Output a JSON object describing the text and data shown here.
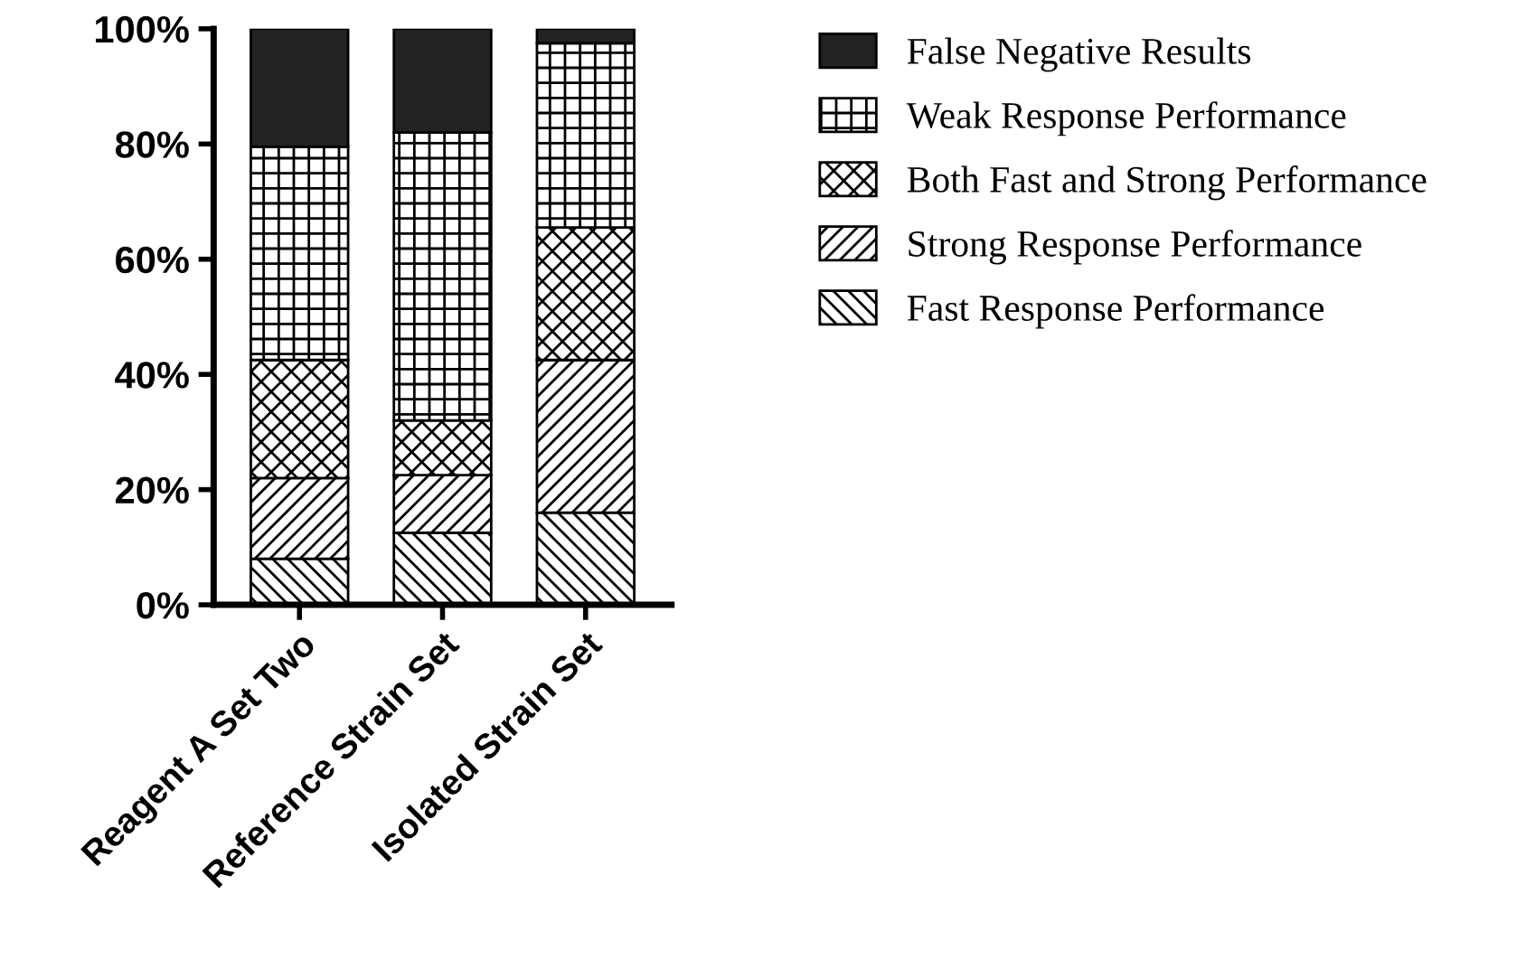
{
  "chart_data": {
    "type": "bar",
    "stacked": true,
    "categories": [
      "Reagent A Set Two",
      "Reference Strain Set",
      "Isolated Strain Set"
    ],
    "series": [
      {
        "name": "Fast Response Performance",
        "color": "#000000",
        "values": [
          8,
          12.5,
          16
        ]
      },
      {
        "name": "Strong Response Performance",
        "color": "#000000",
        "values": [
          14,
          10,
          26.5
        ]
      },
      {
        "name": "Both Fast and Strong Performance",
        "color": "#000000",
        "values": [
          20.5,
          9.5,
          23
        ]
      },
      {
        "name": "Weak Response Performance",
        "color": "#000000",
        "values": [
          37,
          50,
          32
        ]
      },
      {
        "name": "False Negative Results",
        "color": "#222222",
        "values": [
          20.5,
          18,
          2.5
        ]
      }
    ],
    "ylim": [
      0,
      100
    ],
    "yticks": [
      {
        "value": 0,
        "label": "0%"
      },
      {
        "value": 20,
        "label": "20%"
      },
      {
        "value": 40,
        "label": "40%"
      },
      {
        "value": 60,
        "label": "60%"
      },
      {
        "value": 80,
        "label": "80%"
      },
      {
        "value": 100,
        "label": "100%"
      }
    ],
    "grid": false,
    "legend": "right"
  }
}
